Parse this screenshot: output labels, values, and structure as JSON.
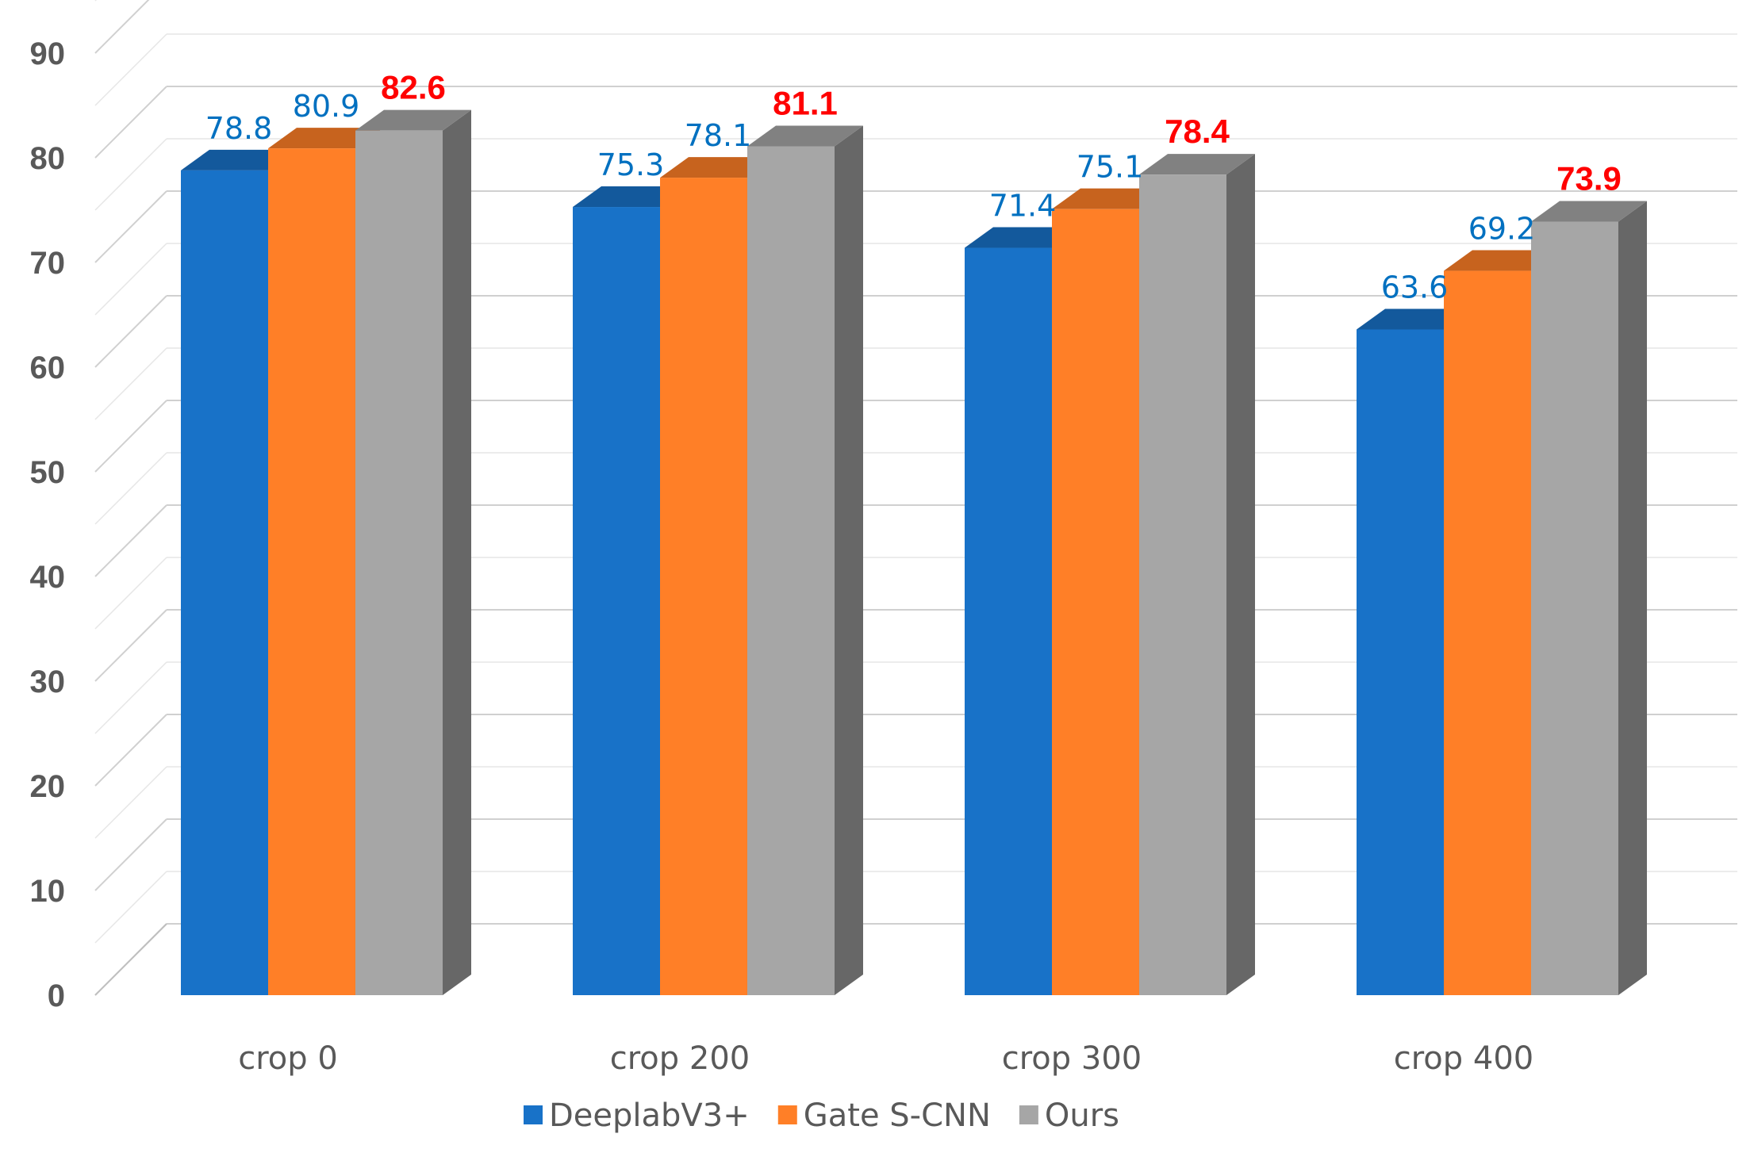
{
  "chart_data": {
    "type": "bar",
    "title": "",
    "xlabel": "",
    "ylabel": "",
    "ylim": [
      0,
      90
    ],
    "yticks": [
      0,
      10,
      20,
      30,
      40,
      50,
      60,
      70,
      80,
      90
    ],
    "grid": true,
    "legend_position": "bottom",
    "categories": [
      "crop 0",
      "crop 200",
      "crop 300",
      "crop 400"
    ],
    "series": [
      {
        "name": "DeeplabV3+",
        "color": "#1872C8",
        "values": [
          78.8,
          75.3,
          71.4,
          63.6
        ]
      },
      {
        "name": "Gate S-CNN",
        "color": "#FF7F27",
        "values": [
          80.9,
          78.1,
          75.1,
          69.2
        ]
      },
      {
        "name": "Ours",
        "color": "#A6A6A6",
        "values": [
          82.6,
          81.1,
          78.4,
          73.9
        ]
      }
    ],
    "data_label_colors": {
      "normal": "#0070C0",
      "highlight": "#FF0000"
    },
    "highlight_series": "Ours"
  }
}
